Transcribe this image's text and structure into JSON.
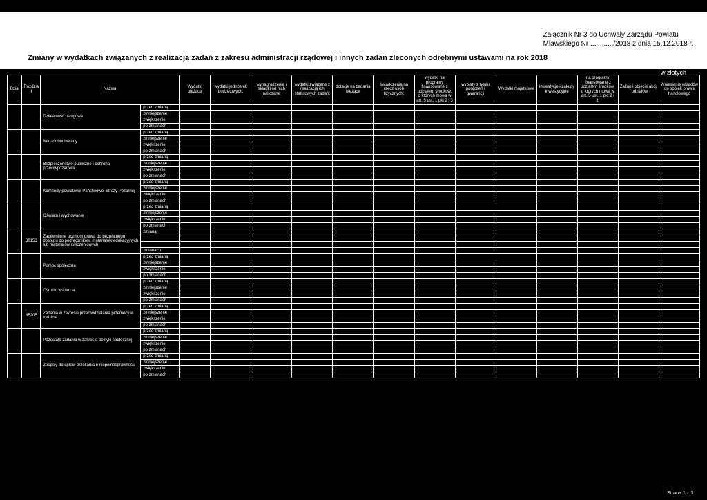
{
  "appendix_line1": "Załącznik Nr 3 do Uchwały Zarządu Powiatu",
  "appendix_line2": "Mławskiego Nr ............/2018 z dnia 15.12.2018 r.",
  "title": "Zmiany w wydatkach związanych z realizacją zadań z zakresu administracji rządowej i innych zadań zleconych odrębnymi ustawami na rok 2018",
  "currency": "w złotych",
  "footer": "Strona 1 z 1",
  "headers": {
    "dzial": "Dział",
    "rozdzial": "Rozdział",
    "nazwa": "Nazwa",
    "wydatki_biezace": "Wydatki bieżące",
    "wydatki_jednostek": "wydatki jednostek budżetowych,",
    "wynagrodzenia": "wynagrodzenia i składki od nich naliczane",
    "wydatki_zwiazane": "wydatki związane z realizacją ich statutowych zadań;",
    "dotacje": "dotacje na zadania bieżące",
    "swiadczenia": "świadczenia na rzecz osób fizycznych;",
    "wydatki_programy": "wydatki na programy finansowane z udziałem środków, o których mowa w art. 5 ust. 1 pkt 2 i 3",
    "wyplaty": "wypłaty z tytułu poręczeń i gwarancji",
    "wydatki_majatkowe": "Wydatki majątkowe",
    "inwestycje": "inwestycje i zakupy inwestycyjne",
    "na_programy": "na programy finansowane z udziałem środków, o których mowa w art. 5 ust. 1 pkt 2 i 3,",
    "zakup": "Zakup i objęcie akcji i udziałów",
    "wniesienie": "Wniesienie wkładów do spółek prawa handlowego"
  },
  "change_labels": {
    "przed": "przed zmianą",
    "zmniejszenie": "zmniejszenie",
    "zwiekszenie": "zwiększenie",
    "po": "po zmianach",
    "zmiana": "zmianą",
    "zmianach": "zmianach"
  },
  "rows": [
    {
      "nazwa": "Działalność usługowa",
      "dzial": "",
      "rozdzial": ""
    },
    {
      "nazwa": "Nadzór budowlany",
      "dzial": "",
      "rozdzial": ""
    },
    {
      "nazwa": "Bezpieczeństwo publiczne i ochrona przeciwpożarowa",
      "dzial": "",
      "rozdzial": ""
    },
    {
      "nazwa": "Komendy powiatowe Państwowej Straży Pożarnej",
      "dzial": "",
      "rozdzial": ""
    },
    {
      "nazwa": "Oświata i wychowanie",
      "dzial": "",
      "rozdzial": ""
    },
    {
      "nazwa": "Zapewnienie uczniom prawa do bezpłatnego dostępu do podręczników, materiałów edukacyjnych lub materiałów ćwiczeniowych",
      "dzial": "",
      "rozdzial": "80153",
      "special": true
    },
    {
      "nazwa": "Pomoc społeczna",
      "dzial": "",
      "rozdzial": ""
    },
    {
      "nazwa": "Ośrodki wsparcia",
      "dzial": "",
      "rozdzial": ""
    },
    {
      "nazwa": "Zadania w zakresie przeciwdziałania przemocy w rodzinie",
      "dzial": "",
      "rozdzial": "85205"
    },
    {
      "nazwa": "Pozostałe zadania w zakresie polityki społecznej",
      "dzial": "",
      "rozdzial": ""
    },
    {
      "nazwa": "Zespoły do spraw orzekania o niepełnosprawności",
      "dzial": "",
      "rozdzial": ""
    }
  ],
  "num_value_cols": 13
}
